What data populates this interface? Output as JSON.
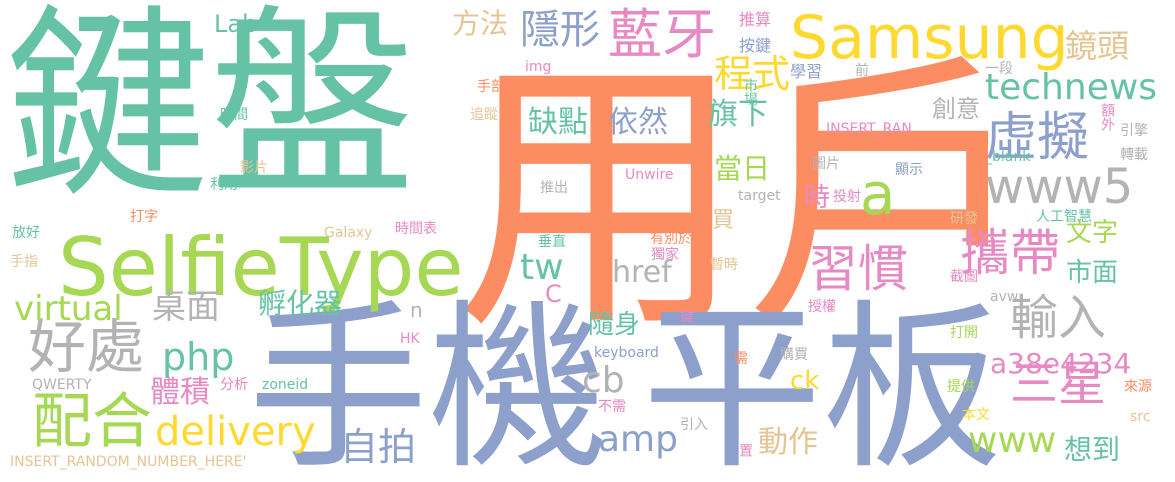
{
  "colors": {
    "green": "#66c2a5",
    "orange": "#fc8d62",
    "blue": "#8da0cb",
    "pink": "#e78ac3",
    "lime": "#a6d854",
    "yellow": "#ffd92f",
    "tan": "#e5c494",
    "gray": "#b3b3b3"
  },
  "words": [
    {
      "text": "鍵盤",
      "color": "green"
    },
    {
      "text": "用戶",
      "color": "orange"
    },
    {
      "text": "手機",
      "color": "blue"
    },
    {
      "text": "平板",
      "color": "blue"
    },
    {
      "text": "SelfieType",
      "color": "lime"
    },
    {
      "text": "Samsung",
      "color": "yellow"
    },
    {
      "text": "藍牙",
      "color": "pink"
    },
    {
      "text": "虛擬",
      "color": "blue"
    },
    {
      "text": "www5",
      "color": "gray"
    },
    {
      "text": "攜帶",
      "color": "pink"
    },
    {
      "text": "習慣",
      "color": "pink"
    },
    {
      "text": "輸入",
      "color": "gray"
    },
    {
      "text": "三星",
      "color": "pink"
    },
    {
      "text": "好處",
      "color": "gray"
    },
    {
      "text": "配合",
      "color": "lime"
    },
    {
      "text": "technews",
      "color": "green"
    },
    {
      "text": "a",
      "color": "lime"
    },
    {
      "text": "隱形",
      "color": "blue"
    },
    {
      "text": "程式",
      "color": "yellow"
    },
    {
      "text": "鏡頭",
      "color": "tan"
    },
    {
      "text": "方法",
      "color": "tan"
    },
    {
      "text": "Lab",
      "color": "green"
    },
    {
      "text": "缺點",
      "color": "green"
    },
    {
      "text": "依然",
      "color": "blue"
    },
    {
      "text": "旗下",
      "color": "green"
    },
    {
      "text": "創意",
      "color": "gray"
    },
    {
      "text": "當日",
      "color": "lime"
    },
    {
      "text": "時",
      "color": "pink"
    },
    {
      "text": "買",
      "color": "tan"
    },
    {
      "text": "文字",
      "color": "lime"
    },
    {
      "text": "市面",
      "color": "green"
    },
    {
      "text": "tw",
      "color": "green"
    },
    {
      "text": "href",
      "color": "gray"
    },
    {
      "text": "virtual",
      "color": "lime"
    },
    {
      "text": "桌面",
      "color": "gray"
    },
    {
      "text": "孵化器",
      "color": "green"
    },
    {
      "text": "php",
      "color": "green"
    },
    {
      "text": "n",
      "color": "gray"
    },
    {
      "text": "C",
      "color": "pink"
    },
    {
      "text": "隨身",
      "color": "green"
    },
    {
      "text": "cb",
      "color": "gray"
    },
    {
      "text": "ck",
      "color": "yellow"
    },
    {
      "text": "a38e4234",
      "color": "pink"
    },
    {
      "text": "體積",
      "color": "pink"
    },
    {
      "text": "delivery",
      "color": "yellow"
    },
    {
      "text": "自拍",
      "color": "blue"
    },
    {
      "text": "amp",
      "color": "blue"
    },
    {
      "text": "動作",
      "color": "tan"
    },
    {
      "text": "www",
      "color": "lime"
    },
    {
      "text": "想到",
      "color": "green"
    },
    {
      "text": "推算",
      "color": "pink"
    },
    {
      "text": "按鍵",
      "color": "blue"
    },
    {
      "text": "學習",
      "color": "blue"
    },
    {
      "text": "前",
      "color": "gray"
    },
    {
      "text": "一段",
      "color": "gray"
    },
    {
      "text": "市場",
      "color": "green"
    },
    {
      "text": "手部",
      "color": "orange"
    },
    {
      "text": "img",
      "color": "pink"
    },
    {
      "text": "追蹤",
      "color": "tan"
    },
    {
      "text": "時間",
      "color": "green"
    },
    {
      "text": "影片",
      "color": "tan"
    },
    {
      "text": "利用",
      "color": "green"
    },
    {
      "text": "打字",
      "color": "orange"
    },
    {
      "text": "放好",
      "color": "green"
    },
    {
      "text": "手指",
      "color": "tan"
    },
    {
      "text": "Galaxy",
      "color": "tan"
    },
    {
      "text": "時間表",
      "color": "pink"
    },
    {
      "text": "Unwire",
      "color": "pink"
    },
    {
      "text": "推出",
      "color": "gray"
    },
    {
      "text": "target",
      "color": "gray"
    },
    {
      "text": "投射",
      "color": "pink"
    },
    {
      "text": "圖片",
      "color": "gray"
    },
    {
      "text": "顯示",
      "color": "blue"
    },
    {
      "text": "_blank",
      "color": "green"
    },
    {
      "text": "INSERT_RAN",
      "color": "pink"
    },
    {
      "text": "額外",
      "color": "pink"
    },
    {
      "text": "引擎",
      "color": "gray"
    },
    {
      "text": "轉載",
      "color": "gray"
    },
    {
      "text": "研發",
      "color": "tan"
    },
    {
      "text": "人工智慧",
      "color": "green"
    },
    {
      "text": "垂直",
      "color": "green"
    },
    {
      "text": "有別於",
      "color": "orange"
    },
    {
      "text": "獨家",
      "color": "pink"
    },
    {
      "text": "暫時",
      "color": "tan"
    },
    {
      "text": "截圖",
      "color": "pink"
    },
    {
      "text": "avw",
      "color": "gray"
    },
    {
      "text": "授權",
      "color": "pink"
    },
    {
      "text": "打開",
      "color": "lime"
    },
    {
      "text": "鍵",
      "color": "pink"
    },
    {
      "text": "HK",
      "color": "pink"
    },
    {
      "text": "keyboard",
      "color": "blue"
    },
    {
      "text": "需",
      "color": "orange"
    },
    {
      "text": "購買",
      "color": "gray"
    },
    {
      "text": "QWERTY",
      "color": "gray"
    },
    {
      "text": "分析",
      "color": "pink"
    },
    {
      "text": "zoneid",
      "color": "green"
    },
    {
      "text": "提供",
      "color": "lime"
    },
    {
      "text": "來源",
      "color": "orange"
    },
    {
      "text": "不需",
      "color": "pink"
    },
    {
      "text": "本文",
      "color": "yellow"
    },
    {
      "text": "src",
      "color": "tan"
    },
    {
      "text": "引入",
      "color": "gray"
    },
    {
      "text": "置",
      "color": "pink"
    },
    {
      "text": "INSERT_RANDOM_NUMBER_HERE'",
      "color": "tan"
    }
  ]
}
